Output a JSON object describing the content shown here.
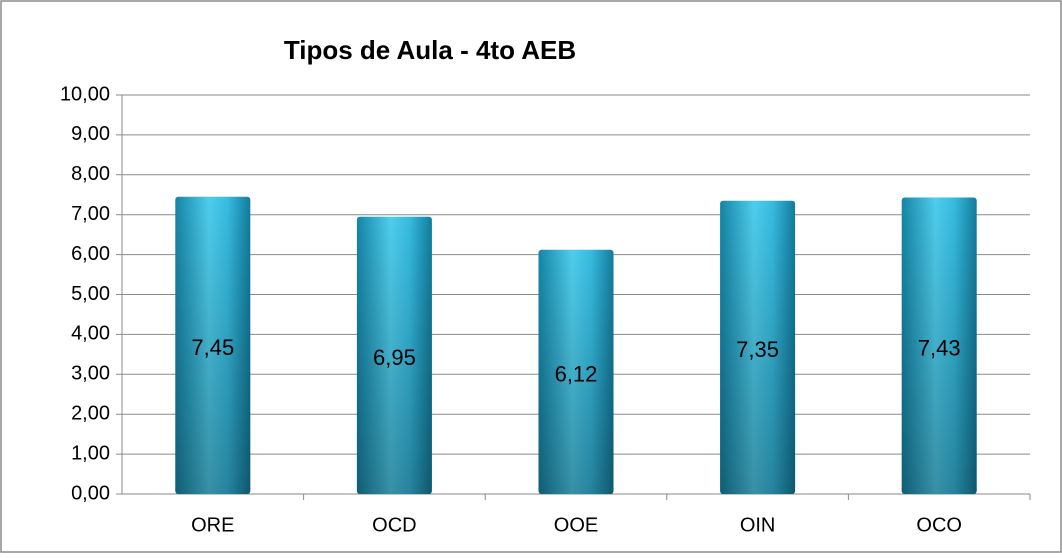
{
  "chart_data": {
    "type": "bar",
    "title": "Tipos de Aula - 4to AEB",
    "categories": [
      "ORE",
      "OCD",
      "OOE",
      "OIN",
      "OCO"
    ],
    "values": [
      7.45,
      6.95,
      6.12,
      7.35,
      7.43
    ],
    "value_labels": [
      "7,45",
      "6,95",
      "6,12",
      "7,35",
      "7,43"
    ],
    "color": "#2fb3d6",
    "ylim": [
      0,
      10
    ],
    "yticks": [
      {
        "value": 0,
        "label": "0,00"
      },
      {
        "value": 1,
        "label": "1,00"
      },
      {
        "value": 2,
        "label": "2,00"
      },
      {
        "value": 3,
        "label": "3,00"
      },
      {
        "value": 4,
        "label": "4,00"
      },
      {
        "value": 5,
        "label": "5,00"
      },
      {
        "value": 6,
        "label": "6,00"
      },
      {
        "value": 7,
        "label": "7,00"
      },
      {
        "value": 8,
        "label": "8,00"
      },
      {
        "value": 9,
        "label": "9,00"
      },
      {
        "value": 10,
        "label": "10,00"
      }
    ],
    "grid": true
  }
}
